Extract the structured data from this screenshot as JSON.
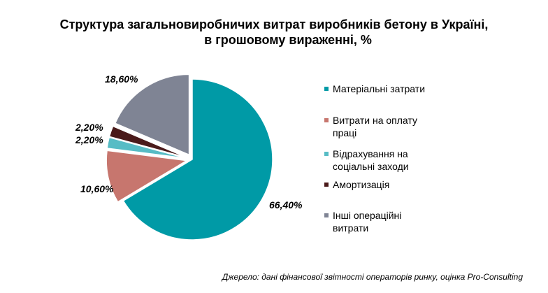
{
  "title": {
    "line1": "Структура загальновиробничих витрат виробників бетону в Україні,",
    "line2": "в грошовому вираженні, %"
  },
  "source": "Джерело: дані фінансової звітності операторів ринку, оцінка Pro-Consulting",
  "chart_data": {
    "type": "pie",
    "title": "Структура загальновиробничих витрат виробників бетону в Україні, в грошовому вираженні, %",
    "legend_position": "right",
    "exploded": true,
    "slices": [
      {
        "name": "Матеріальні затрати",
        "value": 66.4,
        "label": "66,40%",
        "color": "#009aa6"
      },
      {
        "name": "Витрати на оплату праці",
        "value": 10.6,
        "label": "10,60%",
        "color": "#c7766e"
      },
      {
        "name": "Відрахування на соціальні заходи",
        "value": 2.2,
        "label": "2,20%",
        "color": "#57bcc5"
      },
      {
        "name": "Амортизація",
        "value": 2.2,
        "label": "2,20%",
        "color": "#4a1a1a"
      },
      {
        "name": "Інші операційні витрати",
        "value": 18.6,
        "label": "18,60%",
        "color": "#7f8494"
      }
    ]
  }
}
